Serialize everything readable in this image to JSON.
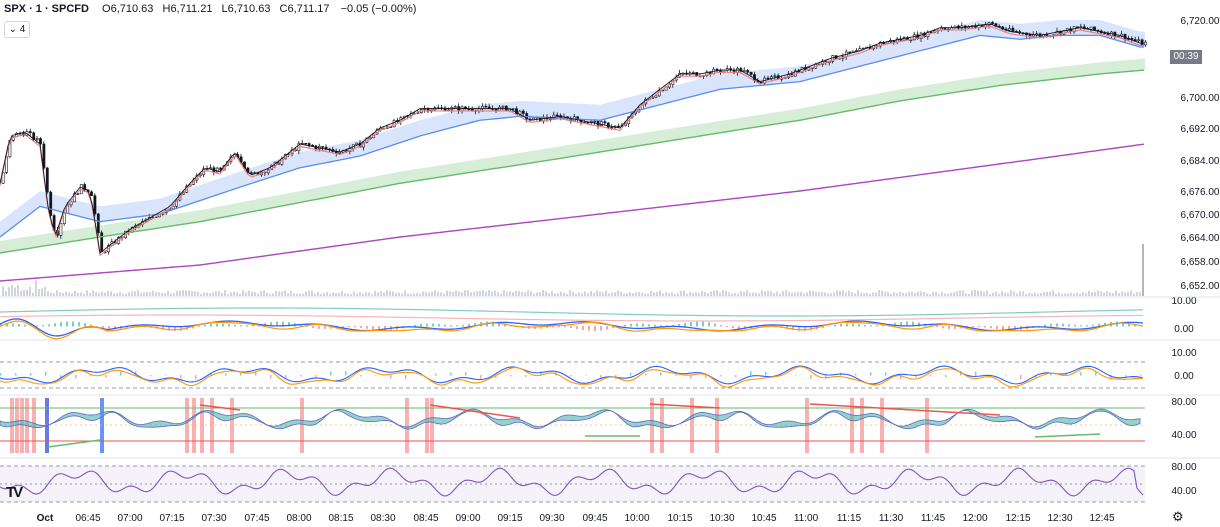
{
  "legend": {
    "symbol": "SPX · 1 · SPCFD",
    "o_key": "O",
    "o_val": "6,710.63",
    "h_key": "H",
    "h_val": "6,711.21",
    "l_key": "L",
    "l_val": "6,710.63",
    "c_key": "C",
    "c_val": "6,711.17",
    "change": "−0.05 (−0.00%)"
  },
  "collapse_button": {
    "icon": "chevron-down-icon",
    "label": "4"
  },
  "price_badge": "00:39",
  "settings_icon": "gear-icon",
  "logo": "tradingview-logo",
  "colors": {
    "up": "#131722",
    "down": "#131722",
    "fast_ma": "#131722",
    "blue_ma": "#5b8def",
    "green_ma": "#66bb6a",
    "purple_ma": "#ab47bc",
    "red_ma": "#f07b7b",
    "rsi": "#7e57c2"
  },
  "chart_data": [
    {
      "type": "candlestick",
      "name": "price",
      "x_tick_labels": [
        "Oct",
        "06:45",
        "07:00",
        "07:15",
        "07:30",
        "07:45",
        "08:00",
        "08:15",
        "08:30",
        "08:45",
        "09:00",
        "09:15",
        "09:30",
        "09:45",
        "10:00",
        "10:15",
        "10:30",
        "10:45",
        "11:00",
        "11:15",
        "11:30",
        "11:45",
        "12:00",
        "12:15",
        "12:30",
        "12:45"
      ],
      "y_tick_labels": [
        "6,720.00",
        "6,700.00",
        "6,692.00",
        "6,684.00",
        "6,676.00",
        "6,670.00",
        "6,664.00",
        "6,658.00",
        "6,652.00"
      ],
      "y_ticks": [
        6720,
        6700,
        6692,
        6684,
        6676,
        6670,
        6664,
        6658,
        6652
      ],
      "y_range": [
        6651,
        6722
      ],
      "close_path": [
        [
          0,
          6678
        ],
        [
          10,
          6690
        ],
        [
          25,
          6691
        ],
        [
          40,
          6688
        ],
        [
          48,
          6672
        ],
        [
          55,
          6664
        ],
        [
          65,
          6672
        ],
        [
          80,
          6677
        ],
        [
          90,
          6676
        ],
        [
          100,
          6660
        ],
        [
          110,
          6662
        ],
        [
          130,
          6666
        ],
        [
          150,
          6669
        ],
        [
          170,
          6672
        ],
        [
          190,
          6678
        ],
        [
          205,
          6682
        ],
        [
          220,
          6681
        ],
        [
          235,
          6686
        ],
        [
          250,
          6680
        ],
        [
          270,
          6682
        ],
        [
          300,
          6688
        ],
        [
          320,
          6687
        ],
        [
          340,
          6686
        ],
        [
          360,
          6688
        ],
        [
          380,
          6692
        ],
        [
          400,
          6694
        ],
        [
          420,
          6697
        ],
        [
          450,
          6697
        ],
        [
          480,
          6697
        ],
        [
          510,
          6697
        ],
        [
          530,
          6694
        ],
        [
          560,
          6695
        ],
        [
          580,
          6694
        ],
        [
          600,
          6693
        ],
        [
          620,
          6692
        ],
        [
          640,
          6698
        ],
        [
          660,
          6702
        ],
        [
          680,
          6706
        ],
        [
          700,
          6706
        ],
        [
          720,
          6707
        ],
        [
          740,
          6707
        ],
        [
          760,
          6704
        ],
        [
          790,
          6706
        ],
        [
          810,
          6708
        ],
        [
          830,
          6710
        ],
        [
          860,
          6712
        ],
        [
          880,
          6714
        ],
        [
          900,
          6715
        ],
        [
          920,
          6716
        ],
        [
          940,
          6718
        ],
        [
          960,
          6718
        ],
        [
          990,
          6719
        ],
        [
          1010,
          6717
        ],
        [
          1040,
          6716
        ],
        [
          1060,
          6717
        ],
        [
          1080,
          6718
        ],
        [
          1100,
          6717
        ],
        [
          1120,
          6716
        ],
        [
          1140,
          6714
        ]
      ],
      "series": [
        {
          "name": "",
          "color": "#5b8def",
          "points": [
            [
              0,
              6664
            ],
            [
              40,
              6672
            ],
            [
              100,
              6668
            ],
            [
              160,
              6670
            ],
            [
              240,
              6677
            ],
            [
              300,
              6682
            ],
            [
              360,
              6685
            ],
            [
              420,
              6690
            ],
            [
              480,
              6694
            ],
            [
              520,
              6695
            ],
            [
              600,
              6694
            ],
            [
              660,
              6698
            ],
            [
              720,
              6702
            ],
            [
              800,
              6704
            ],
            [
              860,
              6708
            ],
            [
              920,
              6712
            ],
            [
              980,
              6716
            ],
            [
              1020,
              6715
            ],
            [
              1060,
              6716
            ],
            [
              1100,
              6716
            ],
            [
              1140,
              6713
            ]
          ]
        },
        {
          "name": "",
          "color": "#66bb6a",
          "points": [
            [
              0,
              6660
            ],
            [
              100,
              6664
            ],
            [
              200,
              6668
            ],
            [
              300,
              6673
            ],
            [
              400,
              6678
            ],
            [
              500,
              6682
            ],
            [
              600,
              6686
            ],
            [
              700,
              6690
            ],
            [
              800,
              6694
            ],
            [
              900,
              6699
            ],
            [
              1000,
              6703
            ],
            [
              1100,
              6706
            ],
            [
              1145,
              6707
            ]
          ]
        },
        {
          "name": "",
          "color": "#ab47bc",
          "points": [
            [
              0,
              6653
            ],
            [
              200,
              6657
            ],
            [
              400,
              6664
            ],
            [
              600,
              6670
            ],
            [
              800,
              6676
            ],
            [
              1000,
              6683
            ],
            [
              1145,
              6688
            ]
          ]
        }
      ]
    },
    {
      "type": "line",
      "name": "oscillator-1",
      "y_tick_labels": [
        "10.00",
        "0.00"
      ]
    },
    {
      "type": "line",
      "name": "oscillator-2",
      "y_tick_labels": [
        "10.00",
        "0.00"
      ]
    },
    {
      "type": "area",
      "name": "oscillator-3",
      "y_tick_labels": [
        "80.00",
        "40.00"
      ]
    },
    {
      "type": "line",
      "name": "rsi",
      "y_tick_labels": [
        "80.00",
        "40.00"
      ]
    }
  ]
}
